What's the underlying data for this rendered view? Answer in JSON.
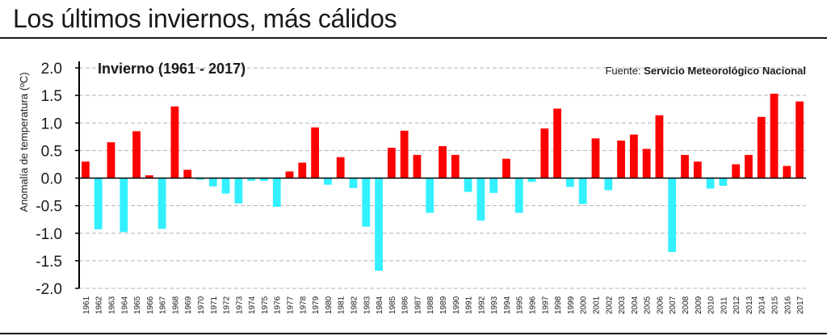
{
  "header": {
    "title": "Los últimos inviernos, más cálidos"
  },
  "colors": {
    "positive": "#ff0000",
    "negative": "#33f0ff",
    "axis": "#000000",
    "grid": "#b3b3b3"
  },
  "chart_data": {
    "type": "bar",
    "title": "Invierno (1961 - 2017)",
    "source_prefix": "Fuente: ",
    "source": "Servicio Meteorológico Nacional",
    "ylabel": "Anomalía de temperatura (ºC)",
    "xlabel": "",
    "ylim": [
      -2.0,
      2.0
    ],
    "yticks": [
      "2.0",
      "1.5",
      "1.0",
      "0.5",
      "0.0",
      "-0.5",
      "-1.0",
      "-1.5",
      "-2.0"
    ],
    "grid": true,
    "categories": [
      "1961",
      "1962",
      "1963",
      "1964",
      "1965",
      "1966",
      "1967",
      "1968",
      "1969",
      "1970",
      "1971",
      "1972",
      "1973",
      "1974",
      "1975",
      "1976",
      "1977",
      "1978",
      "1979",
      "1980",
      "1981",
      "1982",
      "1983",
      "1984",
      "1985",
      "1986",
      "1987",
      "1988",
      "1989",
      "1990",
      "1991",
      "1992",
      "1993",
      "1994",
      "1995",
      "1996",
      "1997",
      "1998",
      "1999",
      "2000",
      "2001",
      "2002",
      "2003",
      "2004",
      "2005",
      "2006",
      "2007",
      "2008",
      "2009",
      "2010",
      "2011",
      "2012",
      "2013",
      "2014",
      "2015",
      "2016",
      "2017"
    ],
    "values": [
      0.3,
      -0.93,
      0.65,
      -0.98,
      0.85,
      0.05,
      -0.92,
      1.3,
      0.15,
      -0.03,
      -0.15,
      -0.28,
      -0.46,
      -0.05,
      -0.05,
      -0.52,
      0.12,
      0.28,
      0.92,
      -0.12,
      0.38,
      -0.18,
      -0.88,
      -1.68,
      0.55,
      0.86,
      0.42,
      -0.63,
      0.58,
      0.42,
      -0.25,
      -0.77,
      -0.27,
      0.35,
      -0.63,
      -0.07,
      0.9,
      1.26,
      -0.16,
      -0.47,
      0.72,
      -0.22,
      0.68,
      0.79,
      0.53,
      1.14,
      -1.34,
      0.42,
      0.3,
      -0.19,
      -0.14,
      0.25,
      0.42,
      1.11,
      1.53,
      0.22,
      1.39
    ]
  }
}
